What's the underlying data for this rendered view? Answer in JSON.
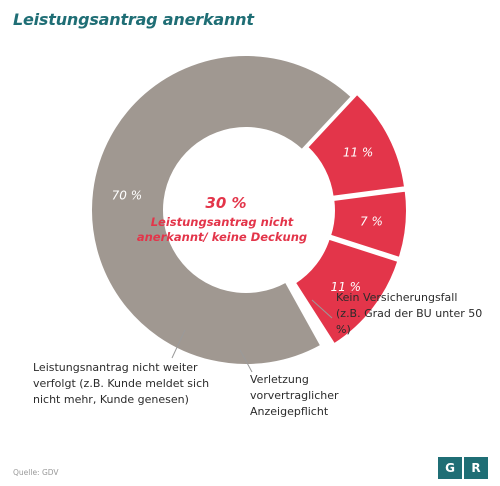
{
  "title": "Leistungsantrag anerkannt",
  "colors": {
    "title": "#1f6e75",
    "gray": "#a09891",
    "red": "#e3354a",
    "white": "#ffffff",
    "logo_bg": "#1f6e75"
  },
  "chart_data": {
    "type": "pie",
    "style": "donut",
    "title": "Leistungsantrag anerkannt",
    "total_value": 100,
    "slices": [
      {
        "label": "70 %",
        "value": 70,
        "color": "#a09891"
      },
      {
        "label": "11 %",
        "value": 11,
        "color": "#e3354a"
      },
      {
        "label": "7 %",
        "value": 7,
        "color": "#e3354a"
      },
      {
        "label": "11 %",
        "value": 11,
        "color": "#e3354a"
      }
    ],
    "center": {
      "value": "30 %",
      "lines": [
        "Leistungsantrag nicht",
        "anerkannt/ keine Deckung"
      ]
    }
  },
  "annotations": {
    "kein_versicherungsfall": [
      "Kein Versicherungsfall",
      "(z.B. Grad der BU unter 50 %)"
    ],
    "anzeigepflicht": [
      "Verletzung",
      "vorvertraglicher",
      "Anzeigepflicht"
    ],
    "nicht_weiter_verfolgt": [
      "Leistungsnantrag nicht weiter",
      "verfolgt (z.B. Kunde meldet sich",
      "nicht mehr, Kunde genesen)"
    ]
  },
  "source": "Quelle: GDV",
  "logo": [
    "G",
    "R"
  ]
}
